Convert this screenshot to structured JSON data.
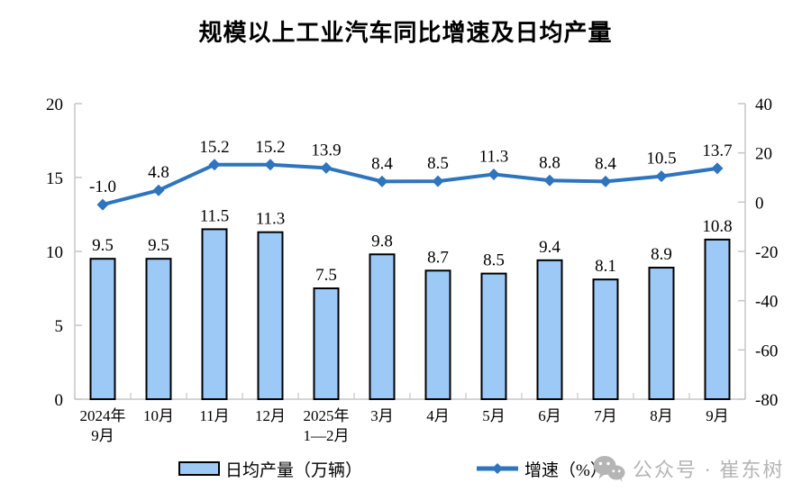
{
  "title": "规模以上工业汽车同比增速及日均产量",
  "legend": {
    "bar_label": "日均产量（万辆）",
    "line_label": "增速（%）"
  },
  "watermark": {
    "text": "公众号 · 崔东树",
    "icon": "wechat-icon",
    "color": "#b5b5b5"
  },
  "colors": {
    "bar_fill": "#9dc9f7",
    "bar_border": "#000000",
    "line": "#2e74be",
    "axis": "#c6c6c6",
    "text": "#000000"
  },
  "chart_data": {
    "type": "bar",
    "subtype": "bar+line combo, dual axis",
    "title": "规模以上工业汽车同比增速及日均产量",
    "categories": [
      "2024年\n9月",
      "10月",
      "11月",
      "12月",
      "2025年\n1—2月",
      "3月",
      "4月",
      "5月",
      "6月",
      "7月",
      "8月",
      "9月"
    ],
    "series": [
      {
        "name": "日均产量（万辆）",
        "type": "bar",
        "axis": "left",
        "color": "#9dc9f7",
        "values": [
          9.5,
          9.5,
          11.5,
          11.3,
          7.5,
          9.8,
          8.7,
          8.5,
          9.4,
          8.1,
          8.9,
          10.8
        ]
      },
      {
        "name": "增速（%）",
        "type": "line",
        "axis": "right",
        "color": "#2e74be",
        "marker": "diamond",
        "values": [
          -1.0,
          4.8,
          15.2,
          15.2,
          13.9,
          8.4,
          8.5,
          11.3,
          8.8,
          8.4,
          10.5,
          13.7
        ]
      }
    ],
    "left_axis": {
      "min": 0,
      "max": 20,
      "ticks": [
        0,
        5,
        10,
        15,
        20
      ]
    },
    "right_axis": {
      "min": -80,
      "max": 40,
      "ticks": [
        -80,
        -60,
        -40,
        -20,
        0,
        20,
        40
      ]
    },
    "grid": false,
    "data_labels": true,
    "legend_position": "bottom"
  }
}
